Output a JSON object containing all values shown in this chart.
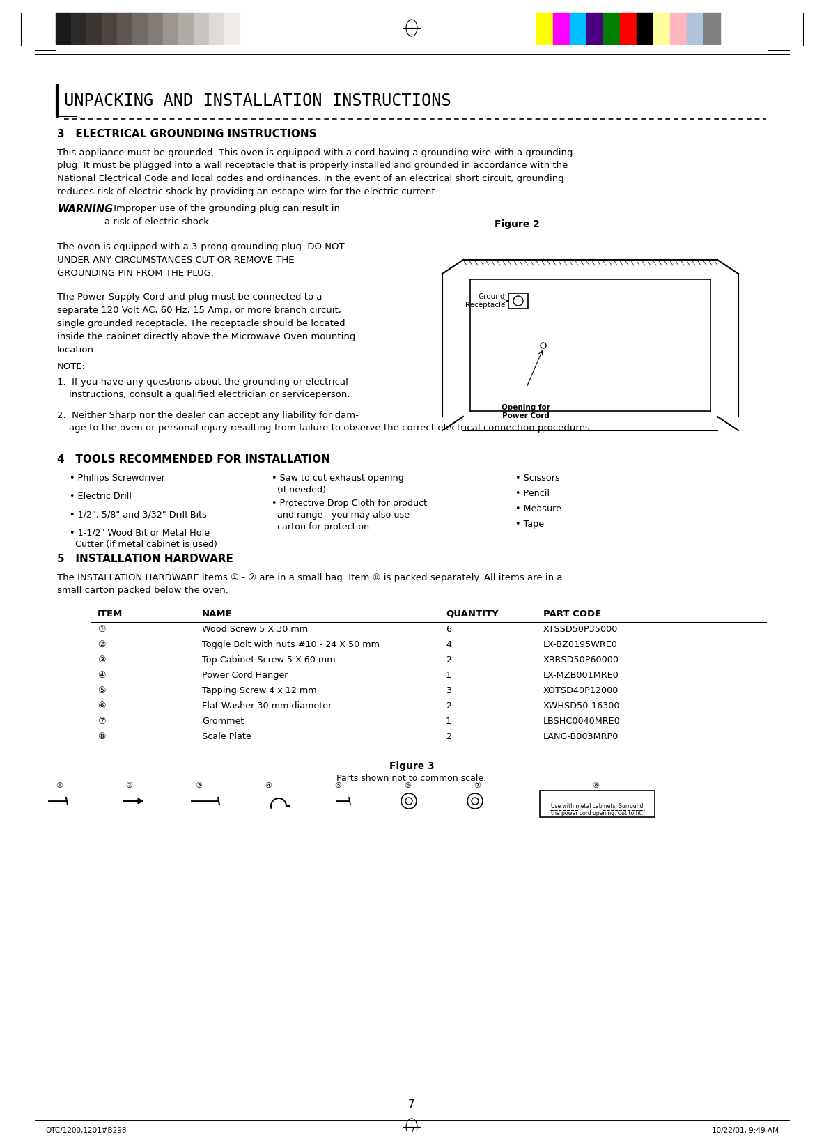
{
  "page_bg": "#ffffff",
  "text_color": "#000000",
  "title_header": "UNPACKING AND INSTALLATION INSTRUCTIONS",
  "section3_title": "3   ELECTRICAL GROUNDING INSTRUCTIONS",
  "section4_title": "4   TOOLS RECOMMENDED FOR INSTALLATION",
  "section5_title": "5   INSTALLATION HARDWARE",
  "figure2_title": "Figure 2",
  "figure3_title": "Figure 3",
  "figure3_sub": "Parts shown not to common scale.",
  "page_number": "7",
  "footer_left": "OTC/1200,1201#B298",
  "footer_center": "7",
  "footer_right": "10/22/01, 9:49 AM",
  "gray_swatches": [
    "#1a1a1a",
    "#2e2a27",
    "#3d3530",
    "#4e4540",
    "#5e5550",
    "#726a64",
    "#837b76",
    "#9c948f",
    "#b0aaa5",
    "#c8c3bf",
    "#dedad7",
    "#f0edeb"
  ],
  "color_swatches": [
    "#ffff00",
    "#ff00ff",
    "#00bfff",
    "#4b0082",
    "#008000",
    "#ff0000",
    "#000000",
    "#ffff99",
    "#ffb6c1",
    "#b0c4de",
    "#808080"
  ],
  "body_text_s3": "This appliance must be grounded. This oven is equipped with a cord having a grounding wire with a grounding\nplug. It must be plugged into a wall receptacle that is properly installed and grounded in accordance with the\nNational Electrical Code and local codes and ordinances. In the event of an electrical short circuit, grounding\nreduces risk of electric shock by providing an escape wire for the electric current.",
  "warning_bold": "WARNING",
  "warning_rest": " - Improper use of the grounding plug can result in\na risk of electric shock.",
  "para2": "The oven is equipped with a 3-prong grounding plug. DO NOT\nUNDER ANY CIRCUMSTANCES CUT OR REMOVE THE\nGROUNDING PIN FROM THE PLUG.",
  "para3": "The Power Supply Cord and plug must be connected to a\nseparate 120 Volt AC, 60 Hz, 15 Amp, or more branch circuit,\nsingle grounded receptacle. The receptacle should be located\ninside the cabinet directly above the Microwave Oven mounting\nlocation.",
  "note_label": "NOTE:",
  "note1": "1.  If you have any questions about the grounding or electrical\n    instructions, consult a qualified electrician or serviceperson.",
  "note2": "2.  Neither Sharp nor the dealer can accept any liability for dam-\n    age to the oven or personal injury resulting from failure to observe the correct electrical connection procedures.",
  "tools_col1": [
    "• Phillips Screwdriver",
    "• Electric Drill",
    "• 1/2\", 5/8\" and 3/32\" Drill Bits",
    "• 1-1/2\" Wood Bit or Metal Hole\n  Cutter (if metal cabinet is used)"
  ],
  "tools_col2": [
    "• Saw to cut exhaust opening\n  (if needed)",
    "• Protective Drop Cloth for product\n  and range - you may also use\n  carton for protection"
  ],
  "tools_col3": [
    "• Scissors",
    "• Pencil",
    "• Measure",
    "• Tape"
  ],
  "hw_intro": "The INSTALLATION HARDWARE items ① - ⑦ are in a small bag. Item ⑧ is packed separately. All items are in a\nsmall carton packed below the oven.",
  "hw_headers": [
    "ITEM",
    "NAME",
    "QUANTITY",
    "PART CODE"
  ],
  "hw_rows": [
    [
      "①",
      "Wood Screw 5 X 30 mm",
      "6",
      "XTSSD50P35000"
    ],
    [
      "②",
      "Toggle Bolt with nuts #10 - 24 X 50 mm",
      "4",
      "LX-BZ0195WRE0"
    ],
    [
      "③",
      "Top Cabinet Screw 5 X 60 mm",
      "2",
      "XBRSD50P60000"
    ],
    [
      "④",
      "Power Cord Hanger",
      "1",
      "LX-MZB001MRE0"
    ],
    [
      "⑤",
      "Tapping Screw 4 x 12 mm",
      "3",
      "XOTSD40P12000"
    ],
    [
      "⑥",
      "Flat Washer 30 mm diameter",
      "2",
      "XWHSD50-16300"
    ],
    [
      "⑦",
      "Grommet",
      "1",
      "LBSHC0040MRE0"
    ],
    [
      "⑧",
      "Scale Plate",
      "2",
      "LANG-B003MRP0"
    ]
  ]
}
